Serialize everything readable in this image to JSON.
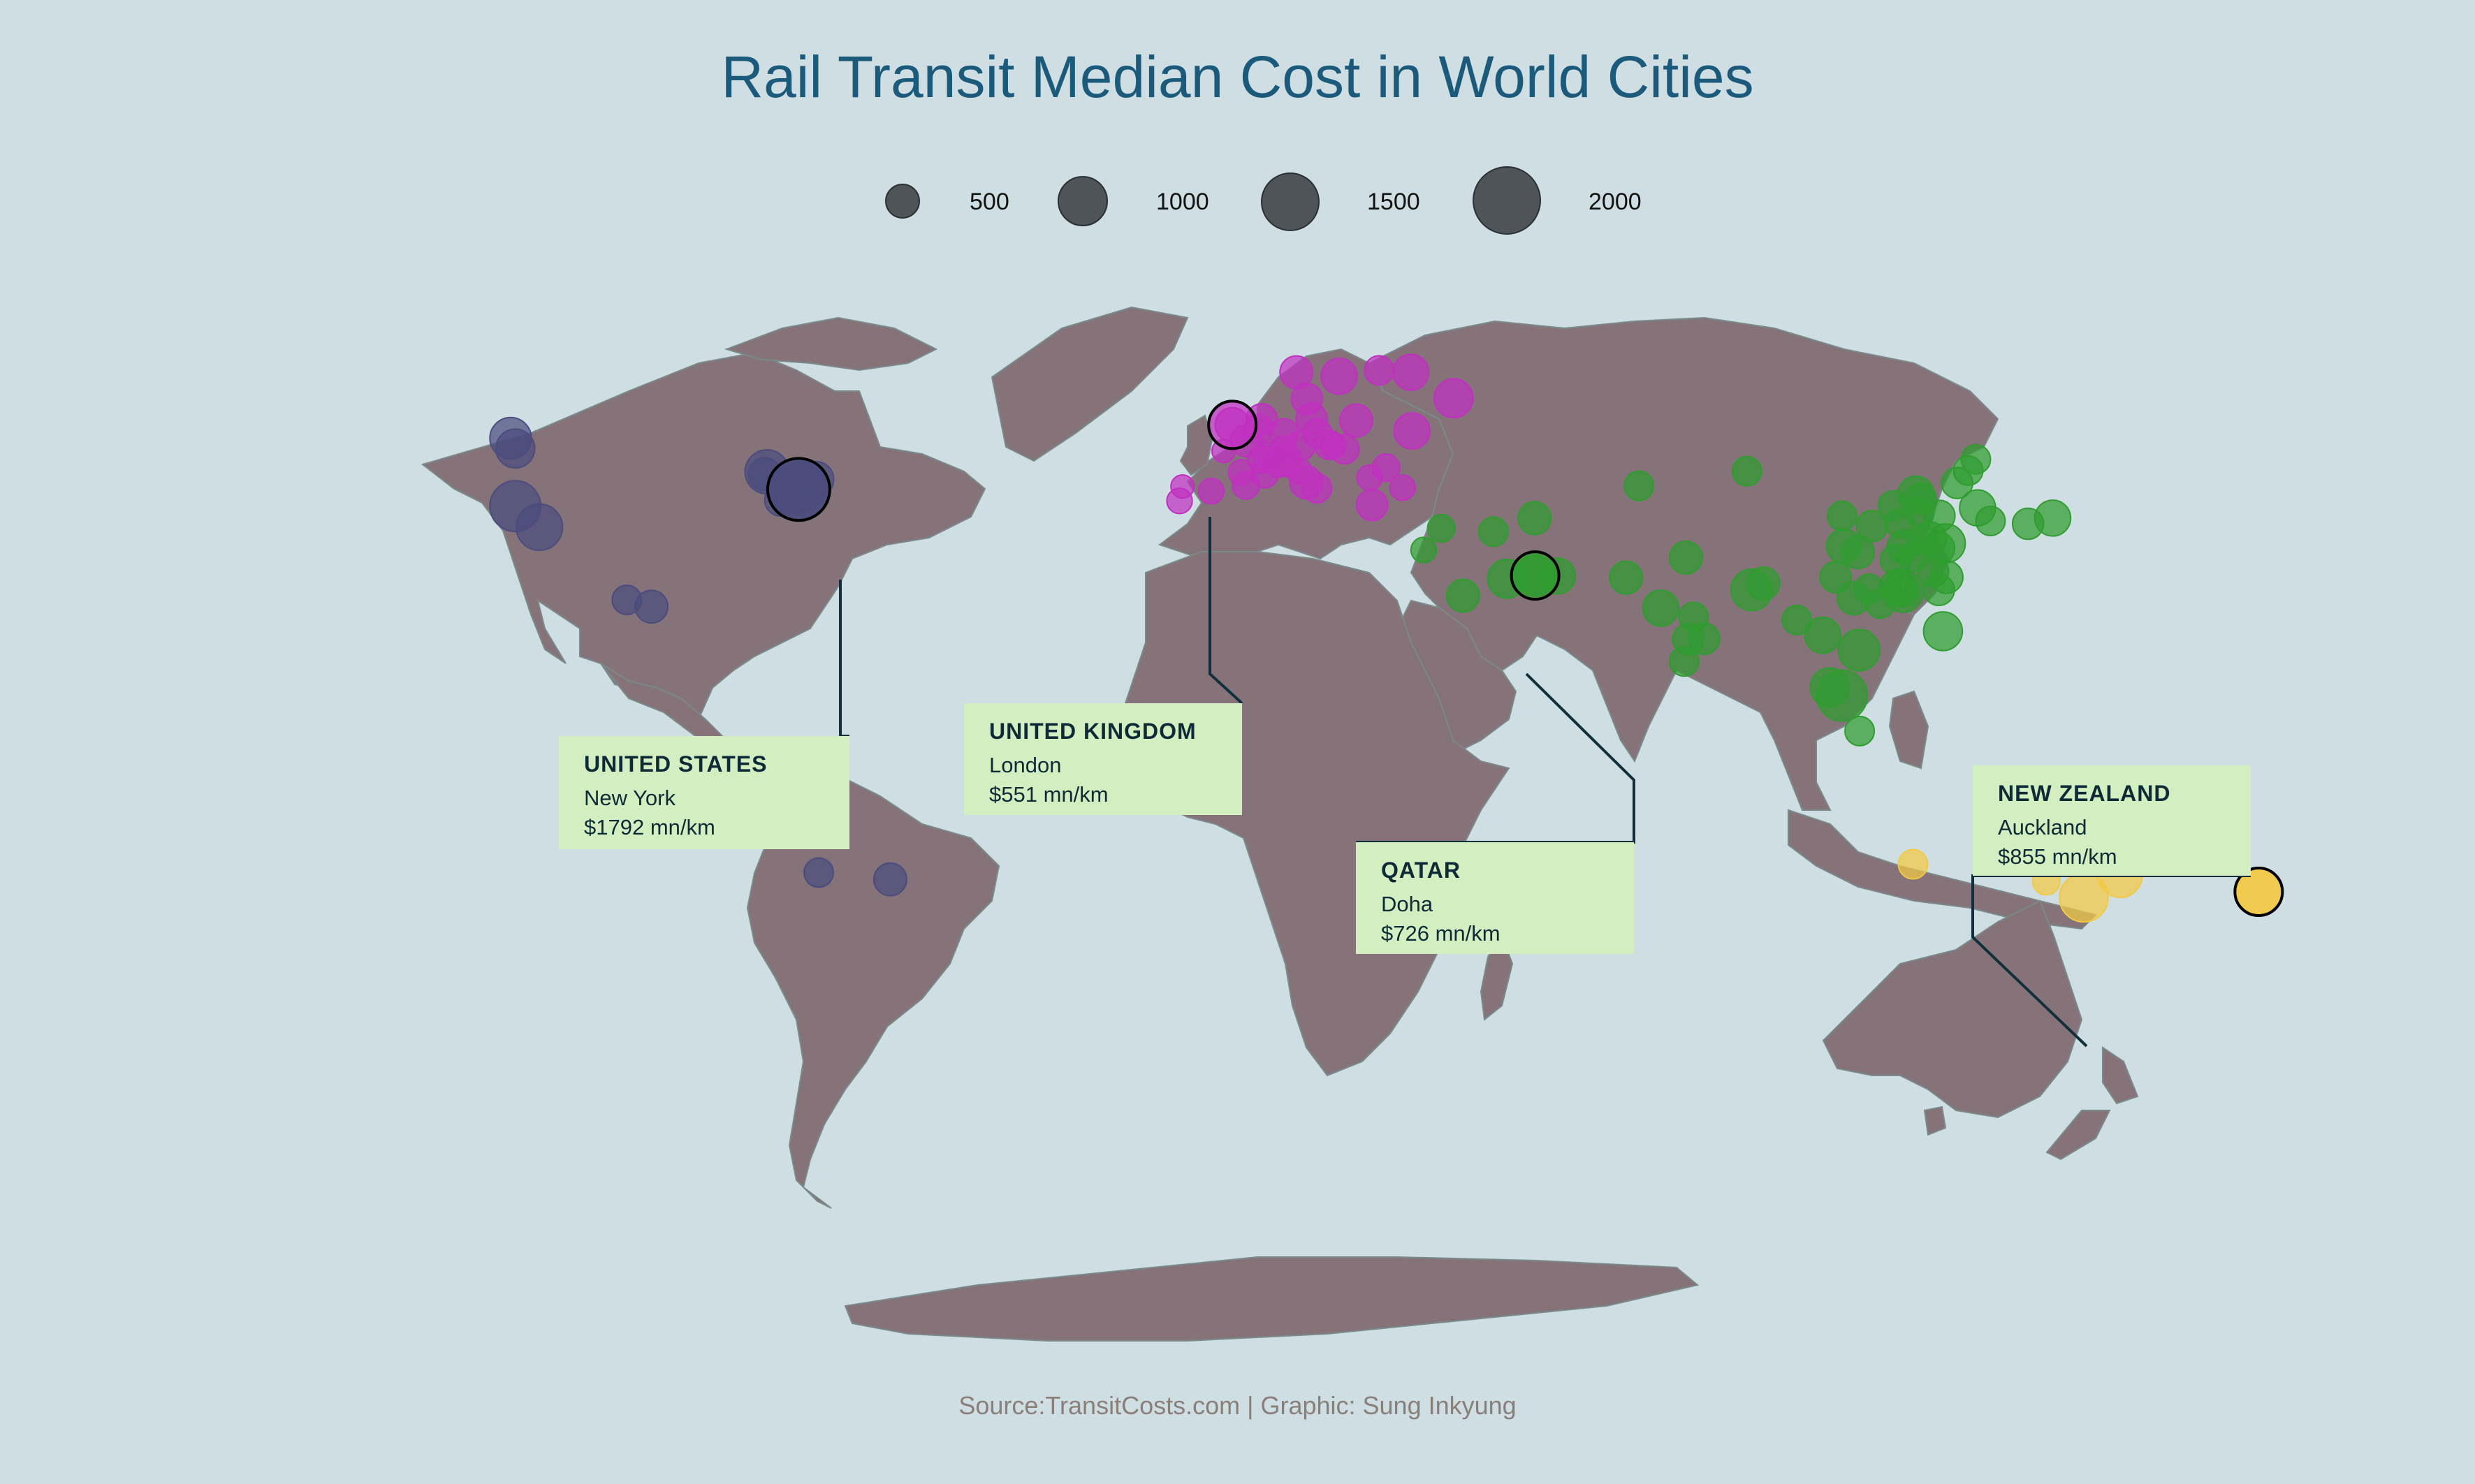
{
  "title": "Rail Transit Median Cost in World Cities",
  "source": "Source:TransitCosts.com | Graphic: Sung Inkyung",
  "colors": {
    "background": "#cfdee3",
    "land": "#86737a",
    "title": "#1b5a7a",
    "americas": "#4b4c7e",
    "europe": "#c030c0",
    "asia": "#2f9c2f",
    "oceania": "#f2c944",
    "callout_bg": "#d3efc1",
    "legend_bubble": "#4f5459"
  },
  "chart_data": {
    "type": "scatter",
    "title": "Rail Transit Median Cost in World Cities",
    "size_legend": [
      500,
      1000,
      1500,
      2000
    ],
    "highlights": [
      {
        "country": "UNITED STATES",
        "city": "New York",
        "cost_label": "$1792 mn/km",
        "cost": 1792
      },
      {
        "country": "UNITED KINGDOM",
        "city": "London",
        "cost_label": "$551 mn/km",
        "cost": 551
      },
      {
        "country": "QATAR",
        "city": "Doha",
        "cost_label": "$726 mn/km",
        "cost": 726
      },
      {
        "country": "NEW ZEALAND",
        "city": "Auckland",
        "cost_label": "$855 mn/km",
        "cost": 855
      }
    ],
    "series": [
      {
        "group": "americas",
        "points": [
          [
            -74.0,
            40.7,
            1792
          ],
          [
            -73.6,
            41.1,
            1100
          ],
          [
            -75.2,
            39.9,
            700
          ],
          [
            -71.1,
            42.4,
            600
          ],
          [
            -77.0,
            38.9,
            500
          ],
          [
            -122.3,
            37.8,
            1200
          ],
          [
            -118.2,
            34.1,
            1000
          ],
          [
            -122.3,
            47.6,
            700
          ],
          [
            -123.1,
            49.3,
            800
          ],
          [
            -99.1,
            19.4,
            500
          ],
          [
            -103.3,
            20.7,
            400
          ],
          [
            -77.0,
            -12.0,
            600
          ],
          [
            -34.9,
            -8.0,
            300
          ],
          [
            -70.6,
            -33.4,
            400
          ],
          [
            -58.4,
            -34.6,
            500
          ],
          [
            -79.4,
            43.7,
            900
          ],
          [
            -79.8,
            43.3,
            500
          ]
        ]
      },
      {
        "group": "europe",
        "points": [
          [
            -0.1,
            51.5,
            551
          ],
          [
            2.4,
            48.9,
            500
          ],
          [
            4.9,
            52.4,
            450
          ],
          [
            4.4,
            50.8,
            400
          ],
          [
            8.7,
            50.1,
            400
          ],
          [
            13.4,
            52.5,
            450
          ],
          [
            11.6,
            48.1,
            400
          ],
          [
            16.4,
            48.2,
            400
          ],
          [
            9.2,
            45.5,
            450
          ],
          [
            12.5,
            41.9,
            500
          ],
          [
            14.3,
            40.9,
            400
          ],
          [
            -3.7,
            40.4,
            300
          ],
          [
            2.2,
            41.4,
            350
          ],
          [
            -9.1,
            38.7,
            300
          ],
          [
            -8.6,
            41.2,
            250
          ],
          [
            6.1,
            46.2,
            400
          ],
          [
            8.5,
            47.4,
            350
          ],
          [
            18.1,
            59.3,
            600
          ],
          [
            10.8,
            59.9,
            500
          ],
          [
            24.9,
            60.2,
            400
          ],
          [
            12.6,
            55.7,
            450
          ],
          [
            21.0,
            52.2,
            500
          ],
          [
            14.4,
            50.1,
            400
          ],
          [
            19.0,
            47.5,
            400
          ],
          [
            26.1,
            44.4,
            350
          ],
          [
            23.7,
            38.0,
            450
          ],
          [
            28.9,
            41.0,
            300
          ],
          [
            30.5,
            50.5,
            600
          ],
          [
            37.6,
            55.8,
            700
          ],
          [
            30.3,
            59.9,
            600
          ],
          [
            5.4,
            43.3,
            350
          ],
          [
            4.8,
            45.8,
            350
          ],
          [
            1.4,
            43.6,
            300
          ],
          [
            -1.6,
            47.2,
            250
          ],
          [
            7.7,
            45.1,
            350
          ],
          [
            11.3,
            43.8,
            300
          ],
          [
            23.3,
            42.7,
            300
          ],
          [
            17.1,
            48.1,
            300
          ]
        ]
      },
      {
        "group": "asia",
        "points": [
          [
            51.5,
            25.3,
            726
          ],
          [
            46.7,
            24.7,
            700
          ],
          [
            55.3,
            25.2,
            600
          ],
          [
            39.2,
            21.5,
            500
          ],
          [
            51.4,
            35.7,
            500
          ],
          [
            44.4,
            33.3,
            400
          ],
          [
            35.5,
            33.9,
            350
          ],
          [
            32.5,
            30.0,
            300
          ],
          [
            69.2,
            41.3,
            400
          ],
          [
            67.0,
            24.9,
            500
          ],
          [
            72.9,
            19.1,
            600
          ],
          [
            77.2,
            28.6,
            500
          ],
          [
            80.3,
            13.1,
            450
          ],
          [
            77.6,
            13.0,
            450
          ],
          [
            78.5,
            17.4,
            400
          ],
          [
            76.9,
            8.5,
            400
          ],
          [
            88.4,
            22.6,
            800
          ],
          [
            90.4,
            23.8,
            500
          ],
          [
            100.5,
            13.8,
            600
          ],
          [
            96.1,
            16.8,
            400
          ],
          [
            103.8,
            1.35,
            1200
          ],
          [
            101.7,
            3.1,
            700
          ],
          [
            106.8,
            -6.2,
            400
          ],
          [
            106.7,
            10.8,
            800
          ],
          [
            105.8,
            21.0,
            500
          ],
          [
            121.0,
            14.6,
            700
          ],
          [
            114.2,
            22.3,
            800
          ],
          [
            113.3,
            23.1,
            600
          ],
          [
            114.1,
            22.5,
            500
          ],
          [
            121.5,
            31.2,
            700
          ],
          [
            120.2,
            30.3,
            500
          ],
          [
            118.8,
            32.1,
            500
          ],
          [
            116.4,
            39.9,
            600
          ],
          [
            117.2,
            39.1,
            450
          ],
          [
            123.4,
            41.8,
            450
          ],
          [
            126.6,
            45.8,
            400
          ],
          [
            125.3,
            43.9,
            400
          ],
          [
            104.1,
            30.7,
            550
          ],
          [
            106.5,
            29.6,
            500
          ],
          [
            108.9,
            34.3,
            450
          ],
          [
            114.3,
            30.6,
            500
          ],
          [
            113.0,
            28.2,
            450
          ],
          [
            119.3,
            26.1,
            450
          ],
          [
            102.7,
            25.0,
            450
          ],
          [
            113.7,
            34.8,
            400
          ],
          [
            117.0,
            36.7,
            400
          ],
          [
            120.4,
            36.1,
            450
          ],
          [
            112.5,
            37.9,
            400
          ],
          [
            103.8,
            36.1,
            400
          ],
          [
            87.6,
            43.8,
            400
          ],
          [
            126.9,
            37.5,
            600
          ],
          [
            129.1,
            35.2,
            400
          ],
          [
            139.7,
            35.7,
            600
          ],
          [
            135.5,
            34.7,
            450
          ],
          [
            121.6,
            25.0,
            500
          ],
          [
            120.3,
            22.6,
            450
          ],
          [
            117.3,
            31.8,
            400
          ],
          [
            115.9,
            28.7,
            400
          ],
          [
            108.4,
            22.8,
            400
          ],
          [
            110.3,
            20.0,
            400
          ]
        ]
      },
      {
        "group": "oceania",
        "points": [
          [
            174.8,
            -36.8,
            855
          ],
          [
            151.2,
            -33.9,
            900
          ],
          [
            145.0,
            -37.8,
            1100
          ],
          [
            153.0,
            -27.5,
            500
          ],
          [
            115.9,
            -31.9,
            400
          ],
          [
            138.6,
            -34.9,
            350
          ]
        ]
      }
    ]
  }
}
